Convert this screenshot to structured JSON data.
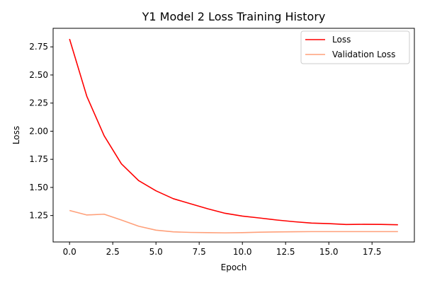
{
  "chart_data": {
    "type": "line",
    "title": "Y1 Model 2 Loss Training History",
    "xlabel": "Epoch",
    "ylabel": "Loss",
    "x": [
      0,
      1,
      2,
      3,
      4,
      5,
      6,
      7,
      8,
      9,
      10,
      11,
      12,
      13,
      14,
      15,
      16,
      17,
      18,
      19
    ],
    "xlim": [
      -0.95,
      19.95
    ],
    "ylim": [
      1.015,
      2.915
    ],
    "xticks": [
      0.0,
      2.5,
      5.0,
      7.5,
      10.0,
      12.5,
      15.0,
      17.5
    ],
    "xtick_labels": [
      "0.0",
      "2.5",
      "5.0",
      "7.5",
      "10.0",
      "12.5",
      "15.0",
      "17.5"
    ],
    "yticks": [
      1.25,
      1.5,
      1.75,
      2.0,
      2.25,
      2.5,
      2.75
    ],
    "ytick_labels": [
      "1.25",
      "1.50",
      "1.75",
      "2.00",
      "2.25",
      "2.50",
      "2.75"
    ],
    "grid": false,
    "legend_position": "top-right",
    "series": [
      {
        "name": "Loss",
        "color": "#ff0000",
        "values": [
          2.82,
          2.31,
          1.96,
          1.71,
          1.56,
          1.47,
          1.4,
          1.355,
          1.31,
          1.27,
          1.245,
          1.228,
          1.21,
          1.195,
          1.183,
          1.178,
          1.17,
          1.172,
          1.171,
          1.168
        ]
      },
      {
        "name": "Validation Loss",
        "color": "#ffa07a",
        "values": [
          1.295,
          1.255,
          1.262,
          1.21,
          1.155,
          1.12,
          1.105,
          1.1,
          1.098,
          1.096,
          1.098,
          1.102,
          1.104,
          1.106,
          1.107,
          1.107,
          1.107,
          1.107,
          1.107,
          1.107
        ]
      }
    ]
  }
}
